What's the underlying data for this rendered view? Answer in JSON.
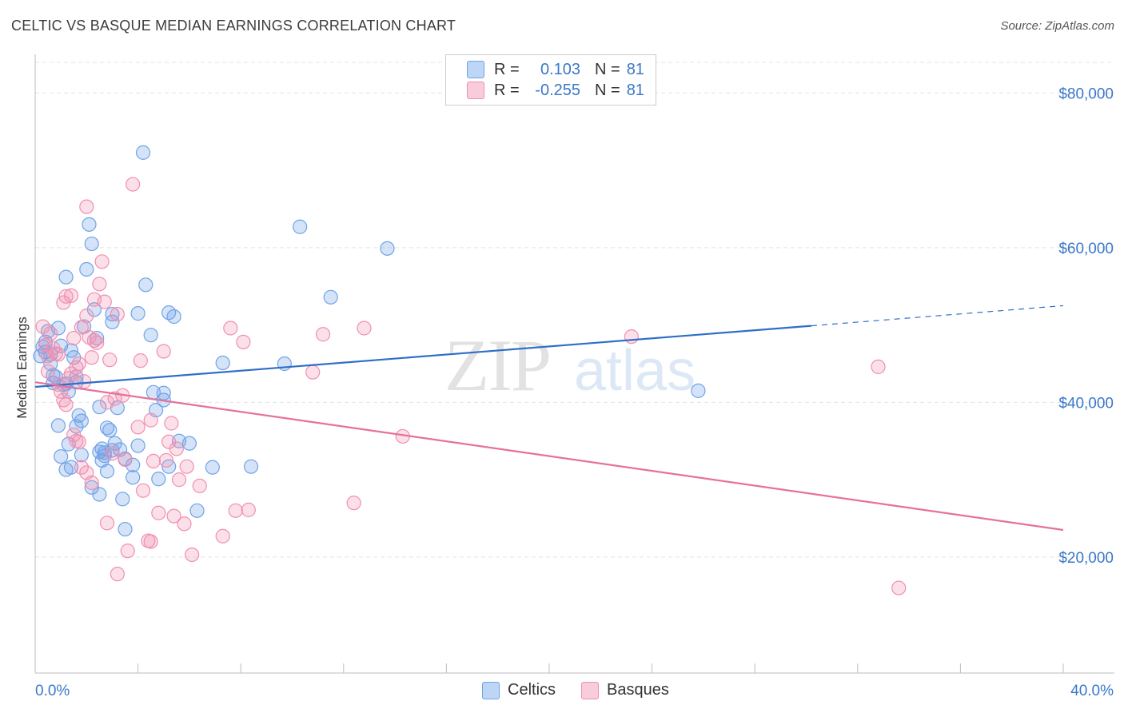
{
  "header": {
    "title": "CELTIC VS BASQUE MEDIAN EARNINGS CORRELATION CHART",
    "source": "Source: ZipAtlas.com"
  },
  "watermark": {
    "zip": "ZIP",
    "atlas": "atlas"
  },
  "legend": {
    "rows": [
      {
        "r_label": "R =",
        "r_value": "0.103",
        "n_label": "N =",
        "n_value": "81",
        "color": "#6fa3e8"
      },
      {
        "r_label": "R =",
        "r_value": "-0.255",
        "n_label": "N =",
        "n_value": "81",
        "color": "#f08fb0"
      }
    ]
  },
  "bottom_legend": {
    "celtics": "Celtics",
    "basques": "Basques"
  },
  "chart_data": {
    "type": "scatter",
    "title": "CELTIC VS BASQUE MEDIAN EARNINGS CORRELATION CHART",
    "xlabel": "",
    "ylabel": "Median Earnings",
    "xlim": [
      0,
      40
    ],
    "ylim": [
      5000,
      85000
    ],
    "x_tick_labels": [
      "0.0%",
      "40.0%"
    ],
    "y_ticks": [
      20000,
      40000,
      60000,
      80000
    ],
    "y_tick_labels": [
      "$20,000",
      "$40,000",
      "$60,000",
      "$80,000"
    ],
    "series": [
      {
        "name": "Celtics",
        "color": "#6fa3e8",
        "line_color": "#2f6fc8",
        "trend": {
          "x": [
            0,
            30.2
          ],
          "y": [
            42000,
            49900
          ],
          "dash_to": 40,
          "dash_y": 52500
        },
        "points": [
          [
            0.2,
            46000
          ],
          [
            0.3,
            47200
          ],
          [
            0.4,
            46500
          ],
          [
            0.5,
            49200
          ],
          [
            0.6,
            45000
          ],
          [
            0.7,
            43500
          ],
          [
            0.4,
            47800
          ],
          [
            0.6,
            46200
          ],
          [
            0.8,
            43300
          ],
          [
            0.9,
            49600
          ],
          [
            1.0,
            47300
          ],
          [
            0.7,
            42500
          ],
          [
            1.2,
            42400
          ],
          [
            1.1,
            42300
          ],
          [
            0.9,
            37000
          ],
          [
            1.0,
            33000
          ],
          [
            1.4,
            46700
          ],
          [
            1.5,
            45800
          ],
          [
            1.6,
            42600
          ],
          [
            1.7,
            38300
          ],
          [
            1.3,
            41400
          ],
          [
            1.3,
            34600
          ],
          [
            1.4,
            31600
          ],
          [
            1.2,
            31300
          ],
          [
            1.8,
            37600
          ],
          [
            1.9,
            49800
          ],
          [
            2.0,
            57200
          ],
          [
            2.1,
            63000
          ],
          [
            2.2,
            60500
          ],
          [
            2.3,
            52000
          ],
          [
            2.4,
            48300
          ],
          [
            1.2,
            56200
          ],
          [
            1.6,
            43300
          ],
          [
            1.8,
            33200
          ],
          [
            2.5,
            39400
          ],
          [
            2.6,
            34000
          ],
          [
            2.7,
            33500
          ],
          [
            2.8,
            36700
          ],
          [
            2.9,
            36400
          ],
          [
            2.2,
            29000
          ],
          [
            2.5,
            28100
          ],
          [
            2.6,
            32500
          ],
          [
            3.0,
            51400
          ],
          [
            3.1,
            34700
          ],
          [
            3.2,
            39300
          ],
          [
            3.3,
            33900
          ],
          [
            3.4,
            27500
          ],
          [
            3.0,
            50400
          ],
          [
            3.5,
            23600
          ],
          [
            3.8,
            30300
          ],
          [
            4.0,
            51500
          ],
          [
            4.0,
            34400
          ],
          [
            4.2,
            72300
          ],
          [
            4.3,
            55200
          ],
          [
            4.5,
            48700
          ],
          [
            4.6,
            41300
          ],
          [
            4.8,
            30100
          ],
          [
            5.0,
            41200
          ],
          [
            5.2,
            51600
          ],
          [
            5.4,
            51100
          ],
          [
            5.6,
            35000
          ],
          [
            5.0,
            40300
          ],
          [
            5.2,
            31700
          ],
          [
            4.7,
            39000
          ],
          [
            6.0,
            34700
          ],
          [
            6.3,
            26000
          ],
          [
            6.9,
            31600
          ],
          [
            7.3,
            45100
          ],
          [
            8.4,
            31700
          ],
          [
            9.7,
            45000
          ],
          [
            10.3,
            62700
          ],
          [
            11.5,
            53600
          ],
          [
            13.7,
            59900
          ],
          [
            3.0,
            33800
          ],
          [
            3.5,
            32700
          ],
          [
            2.5,
            33600
          ],
          [
            2.8,
            31100
          ],
          [
            1.6,
            36900
          ],
          [
            25.8,
            41500
          ],
          [
            3.8,
            31900
          ],
          [
            2.7,
            33100
          ]
        ]
      },
      {
        "name": "Basques",
        "color": "#f08fb0",
        "line_color": "#e5719c",
        "trend": {
          "x": [
            0,
            40
          ],
          "y": [
            42600,
            23500
          ]
        },
        "points": [
          [
            0.3,
            49800
          ],
          [
            0.4,
            47400
          ],
          [
            0.5,
            46000
          ],
          [
            0.6,
            48900
          ],
          [
            0.7,
            47000
          ],
          [
            0.8,
            46300
          ],
          [
            0.9,
            42300
          ],
          [
            1.0,
            41400
          ],
          [
            1.1,
            40300
          ],
          [
            1.2,
            39700
          ],
          [
            1.3,
            43100
          ],
          [
            1.4,
            43700
          ],
          [
            1.5,
            48300
          ],
          [
            1.6,
            44500
          ],
          [
            1.7,
            45000
          ],
          [
            1.8,
            49700
          ],
          [
            1.9,
            42700
          ],
          [
            2.0,
            51200
          ],
          [
            2.1,
            48400
          ],
          [
            2.2,
            45800
          ],
          [
            2.3,
            53300
          ],
          [
            2.4,
            47700
          ],
          [
            2.5,
            55300
          ],
          [
            2.6,
            58200
          ],
          [
            2.7,
            53000
          ],
          [
            2.8,
            40000
          ],
          [
            2.9,
            45500
          ],
          [
            3.0,
            33400
          ],
          [
            3.1,
            40500
          ],
          [
            3.2,
            51400
          ],
          [
            1.4,
            53800
          ],
          [
            1.2,
            53700
          ],
          [
            1.6,
            35000
          ],
          [
            2.0,
            30900
          ],
          [
            2.2,
            29600
          ],
          [
            2.8,
            24400
          ],
          [
            3.4,
            40900
          ],
          [
            3.5,
            32600
          ],
          [
            3.6,
            20800
          ],
          [
            3.8,
            68200
          ],
          [
            4.0,
            36800
          ],
          [
            4.1,
            45400
          ],
          [
            4.2,
            28600
          ],
          [
            4.4,
            22100
          ],
          [
            4.5,
            37700
          ],
          [
            4.6,
            32400
          ],
          [
            4.8,
            25700
          ],
          [
            5.0,
            46600
          ],
          [
            5.1,
            32500
          ],
          [
            5.2,
            34900
          ],
          [
            5.3,
            37300
          ],
          [
            5.4,
            25300
          ],
          [
            5.5,
            34000
          ],
          [
            5.6,
            30000
          ],
          [
            5.8,
            24300
          ],
          [
            5.9,
            31700
          ],
          [
            6.1,
            20300
          ],
          [
            6.4,
            29200
          ],
          [
            7.3,
            22700
          ],
          [
            7.8,
            26000
          ],
          [
            8.3,
            26100
          ],
          [
            7.6,
            49600
          ],
          [
            8.1,
            47800
          ],
          [
            11.2,
            48800
          ],
          [
            12.8,
            49600
          ],
          [
            12.4,
            27000
          ],
          [
            14.3,
            35600
          ],
          [
            10.8,
            43900
          ],
          [
            23.2,
            48500
          ],
          [
            32.8,
            44600
          ],
          [
            33.6,
            16000
          ],
          [
            3.2,
            17800
          ],
          [
            2.3,
            48000
          ],
          [
            2.0,
            65300
          ],
          [
            1.7,
            34900
          ],
          [
            1.8,
            31600
          ],
          [
            0.9,
            46200
          ],
          [
            0.5,
            44000
          ],
          [
            1.1,
            52900
          ],
          [
            1.5,
            35800
          ],
          [
            4.5,
            22000
          ]
        ]
      }
    ]
  }
}
